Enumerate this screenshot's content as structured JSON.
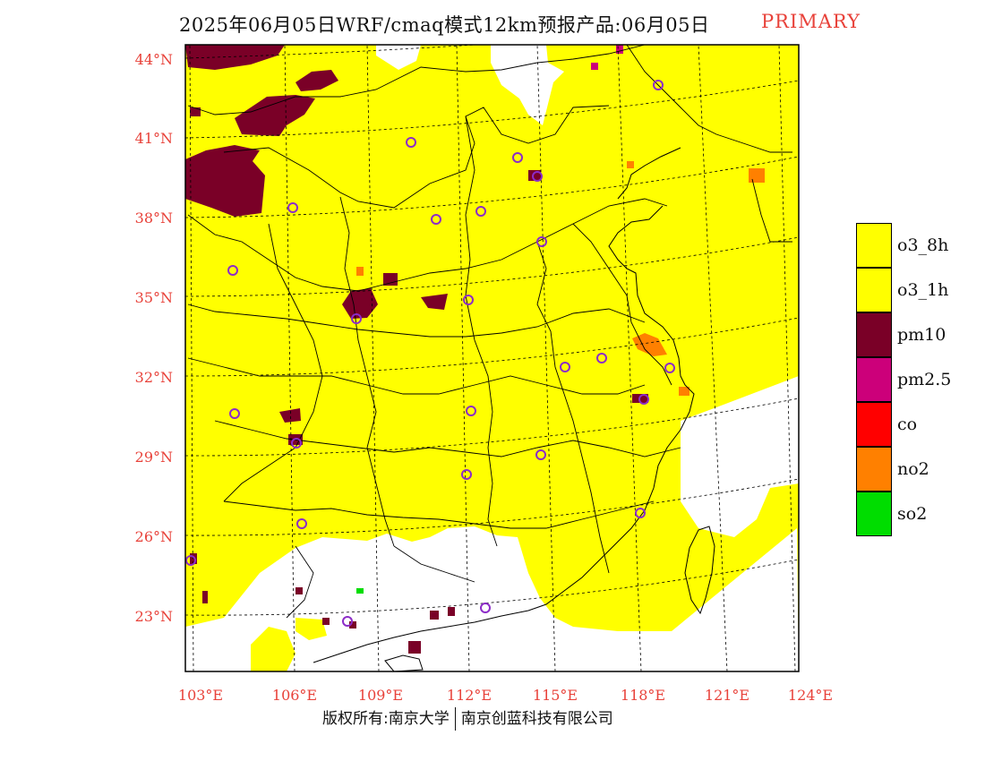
{
  "header": {
    "title": "2025年06月05日WRF/cmaq模式12km预报产品:06月05日",
    "tag": "PRIMARY"
  },
  "map": {
    "lat_labels": [
      "44°N",
      "41°N",
      "38°N",
      "35°N",
      "32°N",
      "29°N",
      "26°N",
      "23°N"
    ],
    "lon_labels": [
      "103°E",
      "106°E",
      "109°E",
      "112°E",
      "115°E",
      "118°E",
      "121°E",
      "124°E"
    ],
    "label_color": "#e8423a",
    "fill_colors": {
      "o3": "#ffff00",
      "pm10": "#7a0027",
      "no2": "#ff8000",
      "pm25": "#cc007a",
      "so2": "#00dd00"
    },
    "marker_color": "#8c2cc8"
  },
  "legend": [
    {
      "label": "o3_8h",
      "color": "#ffff00"
    },
    {
      "label": "o3_1h",
      "color": "#ffff00"
    },
    {
      "label": "pm10",
      "color": "#7a0027"
    },
    {
      "label": "pm2.5",
      "color": "#cc007a"
    },
    {
      "label": "co",
      "color": "#ff0000"
    },
    {
      "label": "no2",
      "color": "#ff8000"
    },
    {
      "label": "so2",
      "color": "#00dd00"
    }
  ],
  "footer": {
    "copyright_left": "版权所有:南京大学",
    "copyright_right": "南京创蓝科技有限公司"
  }
}
